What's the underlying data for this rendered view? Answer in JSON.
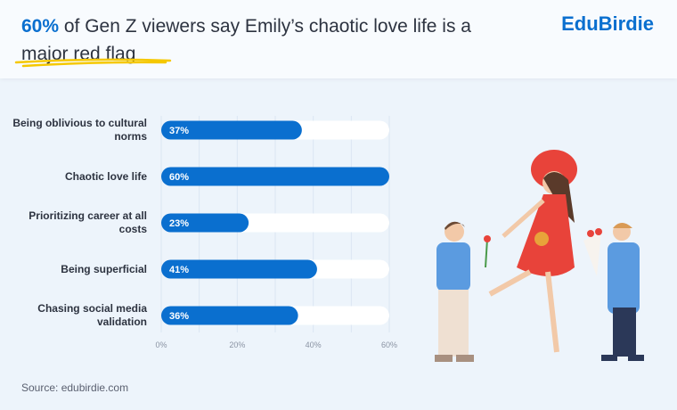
{
  "header": {
    "title_highlight": "60%",
    "title_rest": " of Gen Z viewers say Emily’s chaotic love life is a major red flag",
    "logo": "EduBirdie"
  },
  "colors": {
    "accent": "#0a6fcf",
    "track": "#ffffff",
    "underline": "#f5c800"
  },
  "chart_data": {
    "type": "bar",
    "orientation": "horizontal",
    "categories": [
      "Being oblivious to cultural norms",
      "Chaotic love life",
      "Prioritizing career at all costs",
      "Being superficial",
      "Chasing social media validation"
    ],
    "values": [
      37,
      60,
      23,
      41,
      36
    ],
    "value_labels": [
      "37%",
      "60%",
      "23%",
      "41%",
      "36%"
    ],
    "xlim": [
      0,
      60
    ],
    "xticks": [
      "0%",
      "20%",
      "40%",
      "60%"
    ],
    "grid": true
  },
  "source": "Source: edubirdie.com"
}
